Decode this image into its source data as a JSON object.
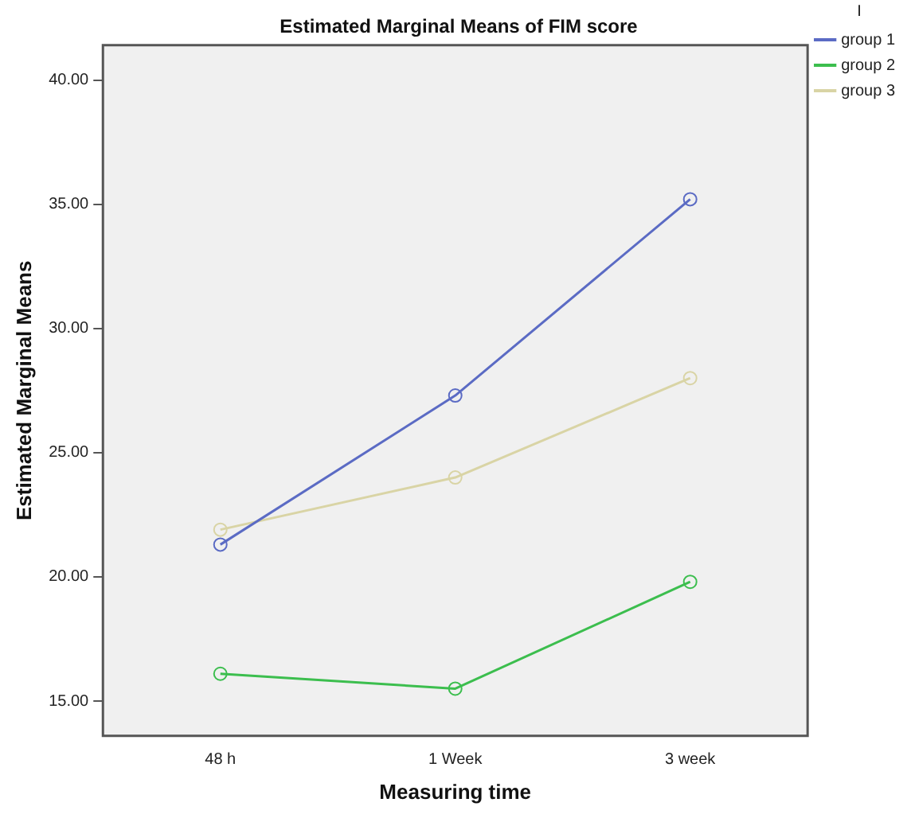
{
  "chart_data": {
    "type": "line",
    "title": "Estimated Marginal Means of FIM score",
    "xlabel": "Measuring time",
    "ylabel": "Estimated Marginal Means",
    "legend_title": "I",
    "categories": [
      "48 h",
      "1 Week",
      "3 week"
    ],
    "series": [
      {
        "name": "group 1",
        "color": "#5b6bc4",
        "values": [
          21.3,
          27.3,
          35.2
        ]
      },
      {
        "name": "group 2",
        "color": "#3cbe4e",
        "values": [
          16.1,
          15.5,
          19.8
        ]
      },
      {
        "name": "group 3",
        "color": "#d9d4a5",
        "values": [
          21.9,
          24.0,
          28.0
        ]
      }
    ],
    "ylim": [
      13.6,
      41.4
    ],
    "yticks": [
      {
        "value": 15,
        "label": "15.00"
      },
      {
        "value": 20,
        "label": "20.00"
      },
      {
        "value": 25,
        "label": "25.00"
      },
      {
        "value": 30,
        "label": "30.00"
      },
      {
        "value": 35,
        "label": "35.00"
      },
      {
        "value": 40,
        "label": "40.00"
      }
    ],
    "grid": false,
    "legend": "top right",
    "marker": "circle",
    "line_style": "solid"
  }
}
